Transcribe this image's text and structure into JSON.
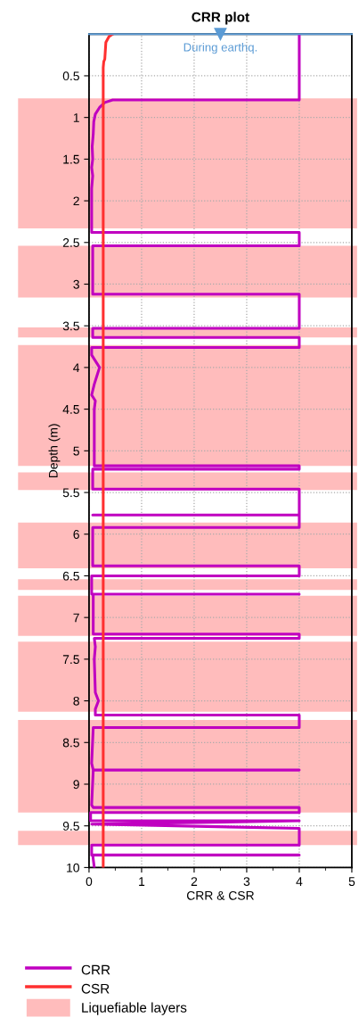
{
  "chart_data": {
    "type": "line",
    "title": "CRR plot",
    "xlabel": "CRR & CSR",
    "ylabel": "Depth (m)",
    "xlim": [
      0,
      5
    ],
    "xticks": [
      0,
      1,
      2,
      3,
      4,
      5
    ],
    "ylim": [
      10,
      0
    ],
    "yticks": [
      0.5,
      1,
      1.5,
      2,
      2.5,
      3,
      3.5,
      4,
      4.5,
      5,
      5.5,
      6,
      6.5,
      7,
      7.5,
      8,
      8.5,
      9,
      9.5,
      10
    ],
    "grid": true,
    "legend": "bottom left",
    "line_style": "solid",
    "marker": "none",
    "series": [
      {
        "name": "CRR",
        "color": "#c000c0",
        "x": [
          4,
          4,
          0.45,
          0.3,
          0.2,
          0.12,
          0.09,
          0.08,
          0.06,
          0.07,
          0.05,
          0.07,
          0.05,
          0.05,
          4,
          4,
          0.07,
          0.07,
          4,
          4,
          0.07,
          0.07,
          4,
          4,
          0.05,
          0.05,
          0.1,
          0.2,
          0.15,
          0.1,
          0.05,
          0.12,
          0.1,
          0.1,
          4,
          4,
          0.07,
          0.07,
          4,
          4,
          0.07,
          4,
          4,
          0.07,
          0.07,
          4,
          4,
          0.05,
          0.05,
          4,
          0.08,
          0.08,
          4,
          4,
          0.1,
          0.12,
          0.1,
          0.12,
          0.18,
          0.12,
          0.12,
          4,
          4,
          0.08,
          0.05,
          0.08,
          4,
          0.08,
          0.05,
          0.08,
          4,
          4,
          0.03,
          0.03,
          4,
          0.05,
          4,
          4,
          0.05,
          0.05,
          4,
          0.07,
          0.1
        ],
        "values": [
          0,
          0.79,
          0.79,
          0.82,
          0.88,
          0.96,
          1.05,
          1.2,
          1.35,
          1.5,
          1.6,
          1.7,
          1.85,
          2.38,
          2.38,
          2.54,
          2.54,
          3.12,
          3.12,
          3.53,
          3.53,
          3.64,
          3.64,
          3.76,
          3.76,
          3.85,
          3.9,
          4.0,
          4.1,
          4.2,
          4.33,
          4.4,
          4.5,
          5.18,
          5.18,
          5.22,
          5.22,
          5.46,
          5.46,
          5.77,
          5.77,
          5.77,
          5.92,
          5.92,
          6.38,
          6.38,
          6.5,
          6.5,
          6.72,
          6.72,
          6.72,
          7.2,
          7.2,
          7.25,
          7.25,
          7.35,
          7.5,
          7.9,
          8.0,
          8.1,
          8.17,
          8.17,
          8.32,
          8.32,
          8.75,
          8.83,
          8.83,
          8.83,
          9.25,
          9.28,
          9.28,
          9.34,
          9.34,
          9.44,
          9.44,
          9.48,
          9.53,
          9.73,
          9.73,
          9.85,
          9.85,
          9.85,
          10
        ]
      },
      {
        "name": "CSR",
        "color": "#ff3030",
        "x": [
          0.45,
          0.38,
          0.32,
          0.3,
          0.28,
          0.27,
          0.27
        ],
        "values": [
          0,
          0.03,
          0.1,
          0.3,
          0.33,
          0.4,
          10
        ]
      }
    ],
    "ref_lines": [
      {
        "axis": "y",
        "value": 0,
        "label": "During earthq.",
        "color": "#5b9bd5"
      }
    ],
    "bands": [
      {
        "axis": "y",
        "from": 0.77,
        "to": 2.33,
        "color": "#ffbcbc",
        "label": "Liquefiable layers"
      },
      {
        "axis": "y",
        "from": 2.54,
        "to": 3.16,
        "color": "#ffbcbc"
      },
      {
        "axis": "y",
        "from": 3.52,
        "to": 3.64,
        "color": "#ffbcbc"
      },
      {
        "axis": "y",
        "from": 3.73,
        "to": 5.18,
        "color": "#ffbcbc"
      },
      {
        "axis": "y",
        "from": 5.26,
        "to": 5.47,
        "color": "#ffbcbc"
      },
      {
        "axis": "y",
        "from": 5.86,
        "to": 6.41,
        "color": "#ffbcbc"
      },
      {
        "axis": "y",
        "from": 6.54,
        "to": 6.67,
        "color": "#ffbcbc"
      },
      {
        "axis": "y",
        "from": 6.74,
        "to": 7.22,
        "color": "#ffbcbc"
      },
      {
        "axis": "y",
        "from": 7.29,
        "to": 8.13,
        "color": "#ffbcbc"
      },
      {
        "axis": "y",
        "from": 8.23,
        "to": 9.34,
        "color": "#ffbcbc"
      },
      {
        "axis": "y",
        "from": 9.56,
        "to": 9.73,
        "color": "#ffbcbc"
      }
    ]
  }
}
